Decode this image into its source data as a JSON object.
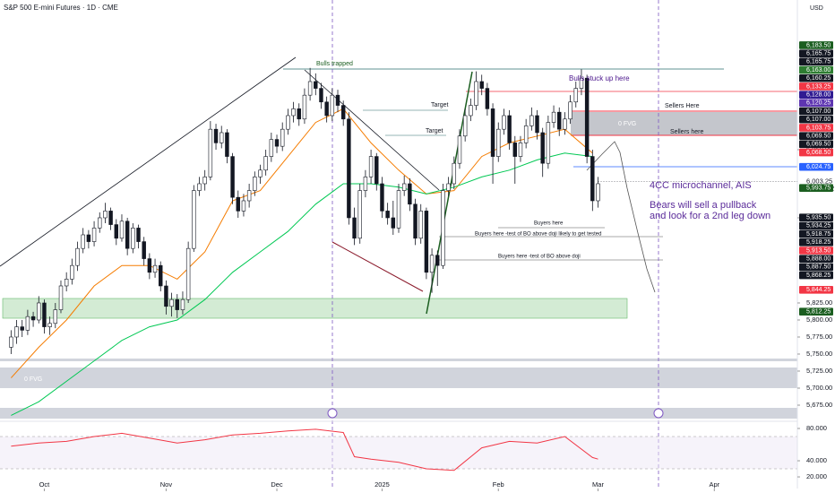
{
  "chart_data": {
    "type": "candlestick",
    "title": "S&P 500 E-mini Futures · 1D · CME",
    "currency": "USD",
    "candles": [
      [
        5760,
        5785,
        5750,
        5775
      ],
      [
        5775,
        5800,
        5765,
        5790
      ],
      [
        5790,
        5800,
        5775,
        5785
      ],
      [
        5785,
        5815,
        5778,
        5805
      ],
      [
        5805,
        5812,
        5790,
        5800
      ],
      [
        5800,
        5835,
        5795,
        5825
      ],
      [
        5825,
        5830,
        5780,
        5790
      ],
      [
        5790,
        5805,
        5778,
        5795
      ],
      [
        5795,
        5825,
        5788,
        5815
      ],
      [
        5815,
        5858,
        5810,
        5850
      ],
      [
        5850,
        5870,
        5842,
        5860
      ],
      [
        5860,
        5890,
        5852,
        5880
      ],
      [
        5880,
        5915,
        5872,
        5905
      ],
      [
        5905,
        5935,
        5898,
        5925
      ],
      [
        5925,
        5932,
        5905,
        5915
      ],
      [
        5915,
        5945,
        5908,
        5935
      ],
      [
        5935,
        5958,
        5928,
        5950
      ],
      [
        5950,
        5972,
        5942,
        5960
      ],
      [
        5960,
        5965,
        5932,
        5940
      ],
      [
        5940,
        5948,
        5910,
        5920
      ],
      [
        5920,
        5955,
        5915,
        5945
      ],
      [
        5945,
        5950,
        5895,
        5905
      ],
      [
        5905,
        5942,
        5898,
        5935
      ],
      [
        5935,
        5940,
        5905,
        5915
      ],
      [
        5915,
        5922,
        5880,
        5890
      ],
      [
        5890,
        5898,
        5860,
        5870
      ],
      [
        5870,
        5890,
        5862,
        5880
      ],
      [
        5880,
        5886,
        5842,
        5850
      ],
      [
        5850,
        5858,
        5808,
        5820
      ],
      [
        5820,
        5840,
        5805,
        5830
      ],
      [
        5830,
        5838,
        5803,
        5815
      ],
      [
        5815,
        5842,
        5808,
        5830
      ],
      [
        5830,
        5915,
        5825,
        5905
      ],
      [
        5905,
        5998,
        5900,
        5990
      ],
      [
        5990,
        6010,
        5982,
        6000
      ],
      [
        6000,
        6020,
        5990,
        6010
      ],
      [
        6010,
        6092,
        6005,
        6080
      ],
      [
        6080,
        6088,
        6050,
        6060
      ],
      [
        6060,
        6085,
        6052,
        6075
      ],
      [
        6075,
        6080,
        6030,
        6040
      ],
      [
        6040,
        6045,
        5970,
        5980
      ],
      [
        5980,
        5990,
        5950,
        5960
      ],
      [
        5960,
        5985,
        5952,
        5975
      ],
      [
        5975,
        6000,
        5965,
        5990
      ],
      [
        5990,
        6018,
        5982,
        6010
      ],
      [
        6010,
        6028,
        6000,
        6020
      ],
      [
        6020,
        6050,
        6012,
        6040
      ],
      [
        6040,
        6075,
        6032,
        6065
      ],
      [
        6065,
        6072,
        6045,
        6055
      ],
      [
        6055,
        6090,
        6048,
        6080
      ],
      [
        6080,
        6110,
        6072,
        6100
      ],
      [
        6100,
        6120,
        6090,
        6110
      ],
      [
        6110,
        6118,
        6085,
        6095
      ],
      [
        6095,
        6140,
        6088,
        6130
      ],
      [
        6130,
        6170,
        6122,
        6150
      ],
      [
        6150,
        6162,
        6130,
        6140
      ],
      [
        6140,
        6148,
        6110,
        6120
      ],
      [
        6120,
        6128,
        6090,
        6100
      ],
      [
        6100,
        6140,
        6092,
        6130
      ],
      [
        6130,
        6138,
        6105,
        6115
      ],
      [
        6115,
        6122,
        6085,
        6095
      ],
      [
        6095,
        6105,
        5940,
        5950
      ],
      [
        5950,
        5965,
        5910,
        5920
      ],
      [
        5920,
        6000,
        5912,
        5990
      ],
      [
        5990,
        6020,
        5980,
        6010
      ],
      [
        6010,
        6050,
        6000,
        6040
      ],
      [
        6040,
        6045,
        5990,
        6000
      ],
      [
        6000,
        6010,
        5950,
        5960
      ],
      [
        5960,
        5972,
        5940,
        5950
      ],
      [
        5950,
        5975,
        5925,
        5935
      ],
      [
        5935,
        6000,
        5928,
        5990
      ],
      [
        5990,
        6012,
        5982,
        6000
      ],
      [
        6000,
        6008,
        5960,
        5970
      ],
      [
        5970,
        5978,
        5910,
        5920
      ],
      [
        5920,
        5970,
        5912,
        5960
      ],
      [
        5960,
        5965,
        5860,
        5870
      ],
      [
        5870,
        5905,
        5840,
        5895
      ],
      [
        5895,
        5902,
        5850,
        5880
      ],
      [
        5880,
        6000,
        5875,
        5990
      ],
      [
        5990,
        6010,
        5982,
        6000
      ],
      [
        6000,
        6040,
        5992,
        6030
      ],
      [
        6030,
        6080,
        6022,
        6070
      ],
      [
        6070,
        6110,
        6062,
        6100
      ],
      [
        6100,
        6125,
        6092,
        6115
      ],
      [
        6115,
        6165,
        6108,
        6150
      ],
      [
        6150,
        6160,
        6130,
        6140
      ],
      [
        6140,
        6148,
        6100,
        6110
      ],
      [
        6110,
        6118,
        6000,
        6040
      ],
      [
        6040,
        6090,
        6032,
        6080
      ],
      [
        6080,
        6110,
        6072,
        6100
      ],
      [
        6100,
        6108,
        6050,
        6060
      ],
      [
        6060,
        6070,
        6000,
        6040
      ],
      [
        6040,
        6070,
        6032,
        6060
      ],
      [
        6060,
        6095,
        6052,
        6085
      ],
      [
        6085,
        6112,
        6078,
        6100
      ],
      [
        6100,
        6108,
        6065,
        6075
      ],
      [
        6075,
        6082,
        6010,
        6030
      ],
      [
        6030,
        6100,
        6022,
        6090
      ],
      [
        6090,
        6115,
        6082,
        6105
      ],
      [
        6105,
        6112,
        6070,
        6080
      ],
      [
        6080,
        6105,
        6072,
        6095
      ],
      [
        6095,
        6130,
        6088,
        6120
      ],
      [
        6120,
        6150,
        6112,
        6140
      ],
      [
        6140,
        6168,
        6130,
        6155
      ],
      [
        6155,
        6160,
        6030,
        6040
      ],
      [
        6040,
        6050,
        5960,
        5975
      ],
      [
        5975,
        6010,
        5965,
        6000
      ]
    ],
    "up_color": "#ffffff",
    "down_color": "#131722",
    "xlim": [
      -2,
      142
    ],
    "xticks": [
      {
        "value": 6,
        "label": "Oct"
      },
      {
        "value": 28,
        "label": "Nov"
      },
      {
        "value": 48,
        "label": "Dec"
      },
      {
        "value": 67,
        "label": "2025"
      },
      {
        "value": 88,
        "label": "Feb"
      },
      {
        "value": 106,
        "label": "Mar"
      },
      {
        "value": 127,
        "label": "Apr"
      }
    ],
    "ylim": [
      5651.3,
      6269.7
    ],
    "yticks": [
      {
        "value": 6050,
        "label": "6,050.00"
      },
      {
        "value": 5950,
        "label": "5,950.00"
      },
      {
        "value": 5825,
        "label": "5,825.00"
      },
      {
        "value": 5800,
        "label": "5,800.00"
      },
      {
        "value": 5775,
        "label": "5,775.00"
      },
      {
        "value": 5750,
        "label": "5,750.00"
      },
      {
        "value": 5725,
        "label": "5,725.00"
      },
      {
        "value": 5700,
        "label": "5,700.00"
      },
      {
        "value": 5675,
        "label": "5,675.00"
      }
    ],
    "price_tags": [
      {
        "value": 6183.5,
        "label": "6,183.50",
        "color": "#1b5e20"
      },
      {
        "value": 6165.75,
        "label": "6,165.75",
        "color": "#131722"
      },
      {
        "value": 6165.75,
        "label": "6,165.75",
        "color": "#131722"
      },
      {
        "value": 6163,
        "label": "6,163.00",
        "color": "#2e7d32"
      },
      {
        "value": 6160.25,
        "label": "6,160.25",
        "color": "#131722"
      },
      {
        "value": 6133.25,
        "label": "6,133.25",
        "color": "#f23645"
      },
      {
        "value": 6128,
        "label": "6,128.00",
        "color": "#311b92"
      },
      {
        "value": 6120.25,
        "label": "6,120.25",
        "color": "#5e35b1"
      },
      {
        "value": 6107,
        "label": "6,107.00",
        "color": "#131722"
      },
      {
        "value": 6107,
        "label": "6,107.00",
        "color": "#131722"
      },
      {
        "value": 6103.75,
        "label": "6,103.75",
        "color": "#f23645"
      },
      {
        "value": 6069.5,
        "label": "6,069.50",
        "color": "#131722"
      },
      {
        "value": 6069.5,
        "label": "6,069.50",
        "color": "#131722"
      },
      {
        "value": 6068.5,
        "label": "6,068.50",
        "color": "#f23645"
      },
      {
        "value": 6024.75,
        "label": "6,024.75",
        "color": "#2962ff"
      },
      {
        "value": 5993.75,
        "label": "5,993.75",
        "color": "#1b5e20"
      },
      {
        "value": 5935.5,
        "label": "5,935.50",
        "color": "#131722"
      },
      {
        "value": 5934.25,
        "label": "5,934.25",
        "color": "#131722"
      },
      {
        "value": 5918.75,
        "label": "5,918.75",
        "color": "#131722"
      },
      {
        "value": 5918.25,
        "label": "5,918.25",
        "color": "#131722"
      },
      {
        "value": 5913.5,
        "label": "5,913.50",
        "color": "#f23645"
      },
      {
        "value": 5888,
        "label": "5,888.00",
        "color": "#131722"
      },
      {
        "value": 5887.5,
        "label": "5,887.50",
        "color": "#131722"
      },
      {
        "value": 5868.25,
        "label": "5,868.25",
        "color": "#131722"
      },
      {
        "value": 5844.25,
        "label": "5,844.25",
        "color": "#f23645"
      },
      {
        "value": 5812.25,
        "label": "5,812.25",
        "color": "#1b5e20"
      }
    ],
    "last_price": {
      "value": 6003.25,
      "label": "6,003.25"
    },
    "countdown": "07:22:12",
    "moving_averages": [
      {
        "color": "#f57c00",
        "x": [
          0,
          5,
          10,
          15,
          20,
          25,
          30,
          35,
          40,
          45,
          50,
          55,
          60,
          65,
          70,
          75,
          80,
          85,
          90,
          95,
          100,
          105
        ],
        "values": [
          5715,
          5760,
          5800,
          5850,
          5880,
          5880,
          5860,
          5900,
          5975,
          5990,
          6040,
          6090,
          6110,
          6060,
          6020,
          5985,
          5990,
          6040,
          6060,
          6070,
          6080,
          6045
        ]
      },
      {
        "color": "#00c853",
        "x": [
          0,
          5,
          10,
          15,
          20,
          25,
          30,
          35,
          40,
          45,
          50,
          55,
          60,
          65,
          70,
          75,
          80,
          85,
          90,
          95,
          100,
          105
        ],
        "values": [
          5660,
          5680,
          5710,
          5740,
          5770,
          5790,
          5800,
          5830,
          5870,
          5900,
          5930,
          5970,
          6000,
          6000,
          5995,
          5985,
          5995,
          6010,
          6020,
          6035,
          6045,
          6040
        ]
      }
    ],
    "oscillator": {
      "color": "#f23645",
      "x": [
        0,
        5,
        10,
        15,
        20,
        25,
        30,
        35,
        40,
        45,
        50,
        55,
        60,
        62,
        65,
        70,
        75,
        80,
        85,
        90,
        95,
        100,
        105,
        106
      ],
      "values": [
        58,
        62,
        64,
        70,
        74,
        68,
        62,
        66,
        72,
        74,
        77,
        79,
        75,
        45,
        42,
        38,
        30,
        28,
        56,
        64,
        62,
        70,
        44,
        42
      ],
      "ylim": [
        5.6,
        88.9
      ],
      "yticks": [
        {
          "value": 80,
          "label": "80.000"
        },
        {
          "value": 40,
          "label": "40.000"
        },
        {
          "value": 20,
          "label": "20.000"
        }
      ]
    },
    "annotations": [
      "Bulls trapped",
      "Target",
      "Target",
      "Bulls stuck up here",
      "Sellers Here",
      "0 FVG",
      "Sellers here",
      "4CC microchannel, AIS",
      "Bears will sell a pullback",
      "and look for a 2nd leg down",
      "Buyers here",
      "Buyers here -test of BO above doji likely to get tested",
      "Buyers here -test of BO above doji",
      "0 FVG"
    ]
  }
}
